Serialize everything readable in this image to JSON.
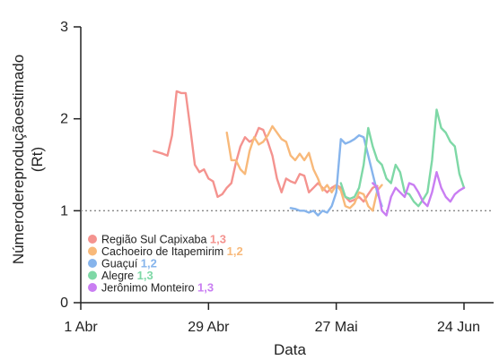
{
  "chart_data": {
    "type": "line",
    "xlabel": "Data",
    "ylabel_line1": "Númeroderepro­duçãoestimado",
    "ylabel_line2": "(Rt)",
    "ylim": [
      0,
      3
    ],
    "yticks": [
      0,
      1,
      2,
      3
    ],
    "xlim": [
      0,
      84
    ],
    "xticks": [
      {
        "day": 0,
        "label": "1 Abr"
      },
      {
        "day": 28,
        "label": "29 Abr"
      },
      {
        "day": 56,
        "label": "27 Mai"
      },
      {
        "day": 84,
        "label": "24 Jun"
      }
    ],
    "reference_line": 1,
    "legend_placement": "bottom-left",
    "series": [
      {
        "name": "Região Sul Capixaba",
        "sup": "1,3",
        "color": "#f4938f",
        "points": [
          [
            16,
            1.65
          ],
          [
            18,
            1.62
          ],
          [
            19,
            1.6
          ],
          [
            20,
            1.82
          ],
          [
            21,
            2.3
          ],
          [
            22,
            2.28
          ],
          [
            23,
            2.28
          ],
          [
            24,
            1.9
          ],
          [
            25,
            1.5
          ],
          [
            26,
            1.42
          ],
          [
            27,
            1.45
          ],
          [
            28,
            1.35
          ],
          [
            29,
            1.32
          ],
          [
            30,
            1.15
          ],
          [
            31,
            1.18
          ],
          [
            32,
            1.25
          ],
          [
            33,
            1.3
          ],
          [
            34,
            1.52
          ],
          [
            35,
            1.7
          ],
          [
            36,
            1.8
          ],
          [
            37,
            1.75
          ],
          [
            38,
            1.78
          ],
          [
            39,
            1.9
          ],
          [
            40,
            1.88
          ],
          [
            41,
            1.75
          ],
          [
            42,
            1.6
          ],
          [
            43,
            1.35
          ],
          [
            44,
            1.2
          ],
          [
            45,
            1.35
          ],
          [
            46,
            1.32
          ],
          [
            47,
            1.3
          ],
          [
            48,
            1.4
          ],
          [
            49,
            1.38
          ],
          [
            50,
            1.2
          ],
          [
            51,
            1.25
          ],
          [
            52,
            1.3
          ],
          [
            53,
            1.25
          ],
          [
            54,
            1.2
          ],
          [
            55,
            1.25
          ],
          [
            56,
            1.28
          ],
          [
            57,
            1.25
          ],
          [
            58,
            1.15
          ],
          [
            59,
            1.1
          ],
          [
            60,
            1.12
          ],
          [
            61,
            1.15
          ],
          [
            62,
            1.1
          ],
          [
            63,
            1.18
          ],
          [
            64,
            1.25
          ],
          [
            65,
            1.27
          ]
        ]
      },
      {
        "name": "Cachoeiro de Itapemirim",
        "sup": "1,2",
        "color": "#f8b97a",
        "points": [
          [
            32,
            1.85
          ],
          [
            33,
            1.55
          ],
          [
            34,
            1.55
          ],
          [
            35,
            1.45
          ],
          [
            36,
            1.4
          ],
          [
            37,
            1.65
          ],
          [
            38,
            1.8
          ],
          [
            39,
            1.72
          ],
          [
            40,
            1.75
          ],
          [
            41,
            1.82
          ],
          [
            42,
            1.92
          ],
          [
            43,
            1.85
          ],
          [
            44,
            1.78
          ],
          [
            45,
            1.75
          ],
          [
            46,
            1.6
          ],
          [
            47,
            1.55
          ],
          [
            48,
            1.62
          ],
          [
            49,
            1.55
          ],
          [
            50,
            1.63
          ],
          [
            51,
            1.45
          ],
          [
            52,
            1.35
          ],
          [
            53,
            1.22
          ],
          [
            54,
            1.28
          ],
          [
            55,
            1.2
          ],
          [
            56,
            1.28
          ],
          [
            57,
            1.22
          ],
          [
            58,
            1.05
          ],
          [
            59,
            1.03
          ],
          [
            60,
            1.08
          ],
          [
            61,
            1.2
          ],
          [
            62,
            1.18
          ],
          [
            63,
            1.05
          ],
          [
            64,
            1.0
          ],
          [
            65,
            1.22
          ],
          [
            66,
            1.28
          ]
        ]
      },
      {
        "name": "Guaçuí",
        "sup": "1,2",
        "color": "#86b4ec",
        "points": [
          [
            46,
            1.03
          ],
          [
            47,
            1.02
          ],
          [
            48,
            1.0
          ],
          [
            49,
            1.0
          ],
          [
            50,
            0.98
          ],
          [
            51,
            1.0
          ],
          [
            52,
            0.95
          ],
          [
            53,
            1.0
          ],
          [
            54,
            0.98
          ],
          [
            55,
            1.05
          ],
          [
            56,
            1.2
          ],
          [
            57,
            1.78
          ],
          [
            58,
            1.73
          ],
          [
            59,
            1.75
          ],
          [
            60,
            1.78
          ],
          [
            61,
            1.82
          ],
          [
            62,
            1.8
          ],
          [
            63,
            1.6
          ],
          [
            64,
            1.4
          ],
          [
            65,
            1.2
          ],
          [
            66,
            1.05
          ]
        ]
      },
      {
        "name": "Alegre",
        "sup": "1,3",
        "color": "#7ed8a6",
        "points": [
          [
            57,
            1.3
          ],
          [
            58,
            1.15
          ],
          [
            59,
            1.13
          ],
          [
            60,
            1.15
          ],
          [
            61,
            1.25
          ],
          [
            62,
            1.5
          ],
          [
            63,
            1.9
          ],
          [
            64,
            1.7
          ],
          [
            65,
            1.55
          ],
          [
            66,
            1.5
          ],
          [
            67,
            1.35
          ],
          [
            68,
            1.3
          ],
          [
            69,
            1.5
          ],
          [
            70,
            1.42
          ],
          [
            71,
            1.2
          ],
          [
            72,
            1.18
          ],
          [
            73,
            1.1
          ],
          [
            74,
            1.05
          ],
          [
            75,
            1.12
          ],
          [
            76,
            1.2
          ],
          [
            77,
            1.55
          ],
          [
            78,
            2.1
          ],
          [
            79,
            1.9
          ],
          [
            80,
            1.85
          ],
          [
            81,
            1.75
          ],
          [
            82,
            1.7
          ],
          [
            83,
            1.4
          ],
          [
            84,
            1.25
          ]
        ]
      },
      {
        "name": "Jerônimo Monteiro",
        "sup": "1,3",
        "color": "#c97ef2",
        "points": [
          [
            64,
            1.3
          ],
          [
            65,
            1.25
          ],
          [
            66,
            1.0
          ],
          [
            67,
            0.95
          ],
          [
            68,
            1.15
          ],
          [
            69,
            1.25
          ],
          [
            70,
            1.2
          ],
          [
            71,
            1.15
          ],
          [
            72,
            1.3
          ],
          [
            73,
            1.28
          ],
          [
            74,
            1.2
          ],
          [
            75,
            1.1
          ],
          [
            76,
            1.05
          ],
          [
            77,
            1.2
          ],
          [
            78,
            1.42
          ],
          [
            79,
            1.25
          ],
          [
            80,
            1.15
          ],
          [
            81,
            1.1
          ],
          [
            82,
            1.18
          ],
          [
            83,
            1.22
          ],
          [
            84,
            1.25
          ]
        ]
      }
    ]
  }
}
